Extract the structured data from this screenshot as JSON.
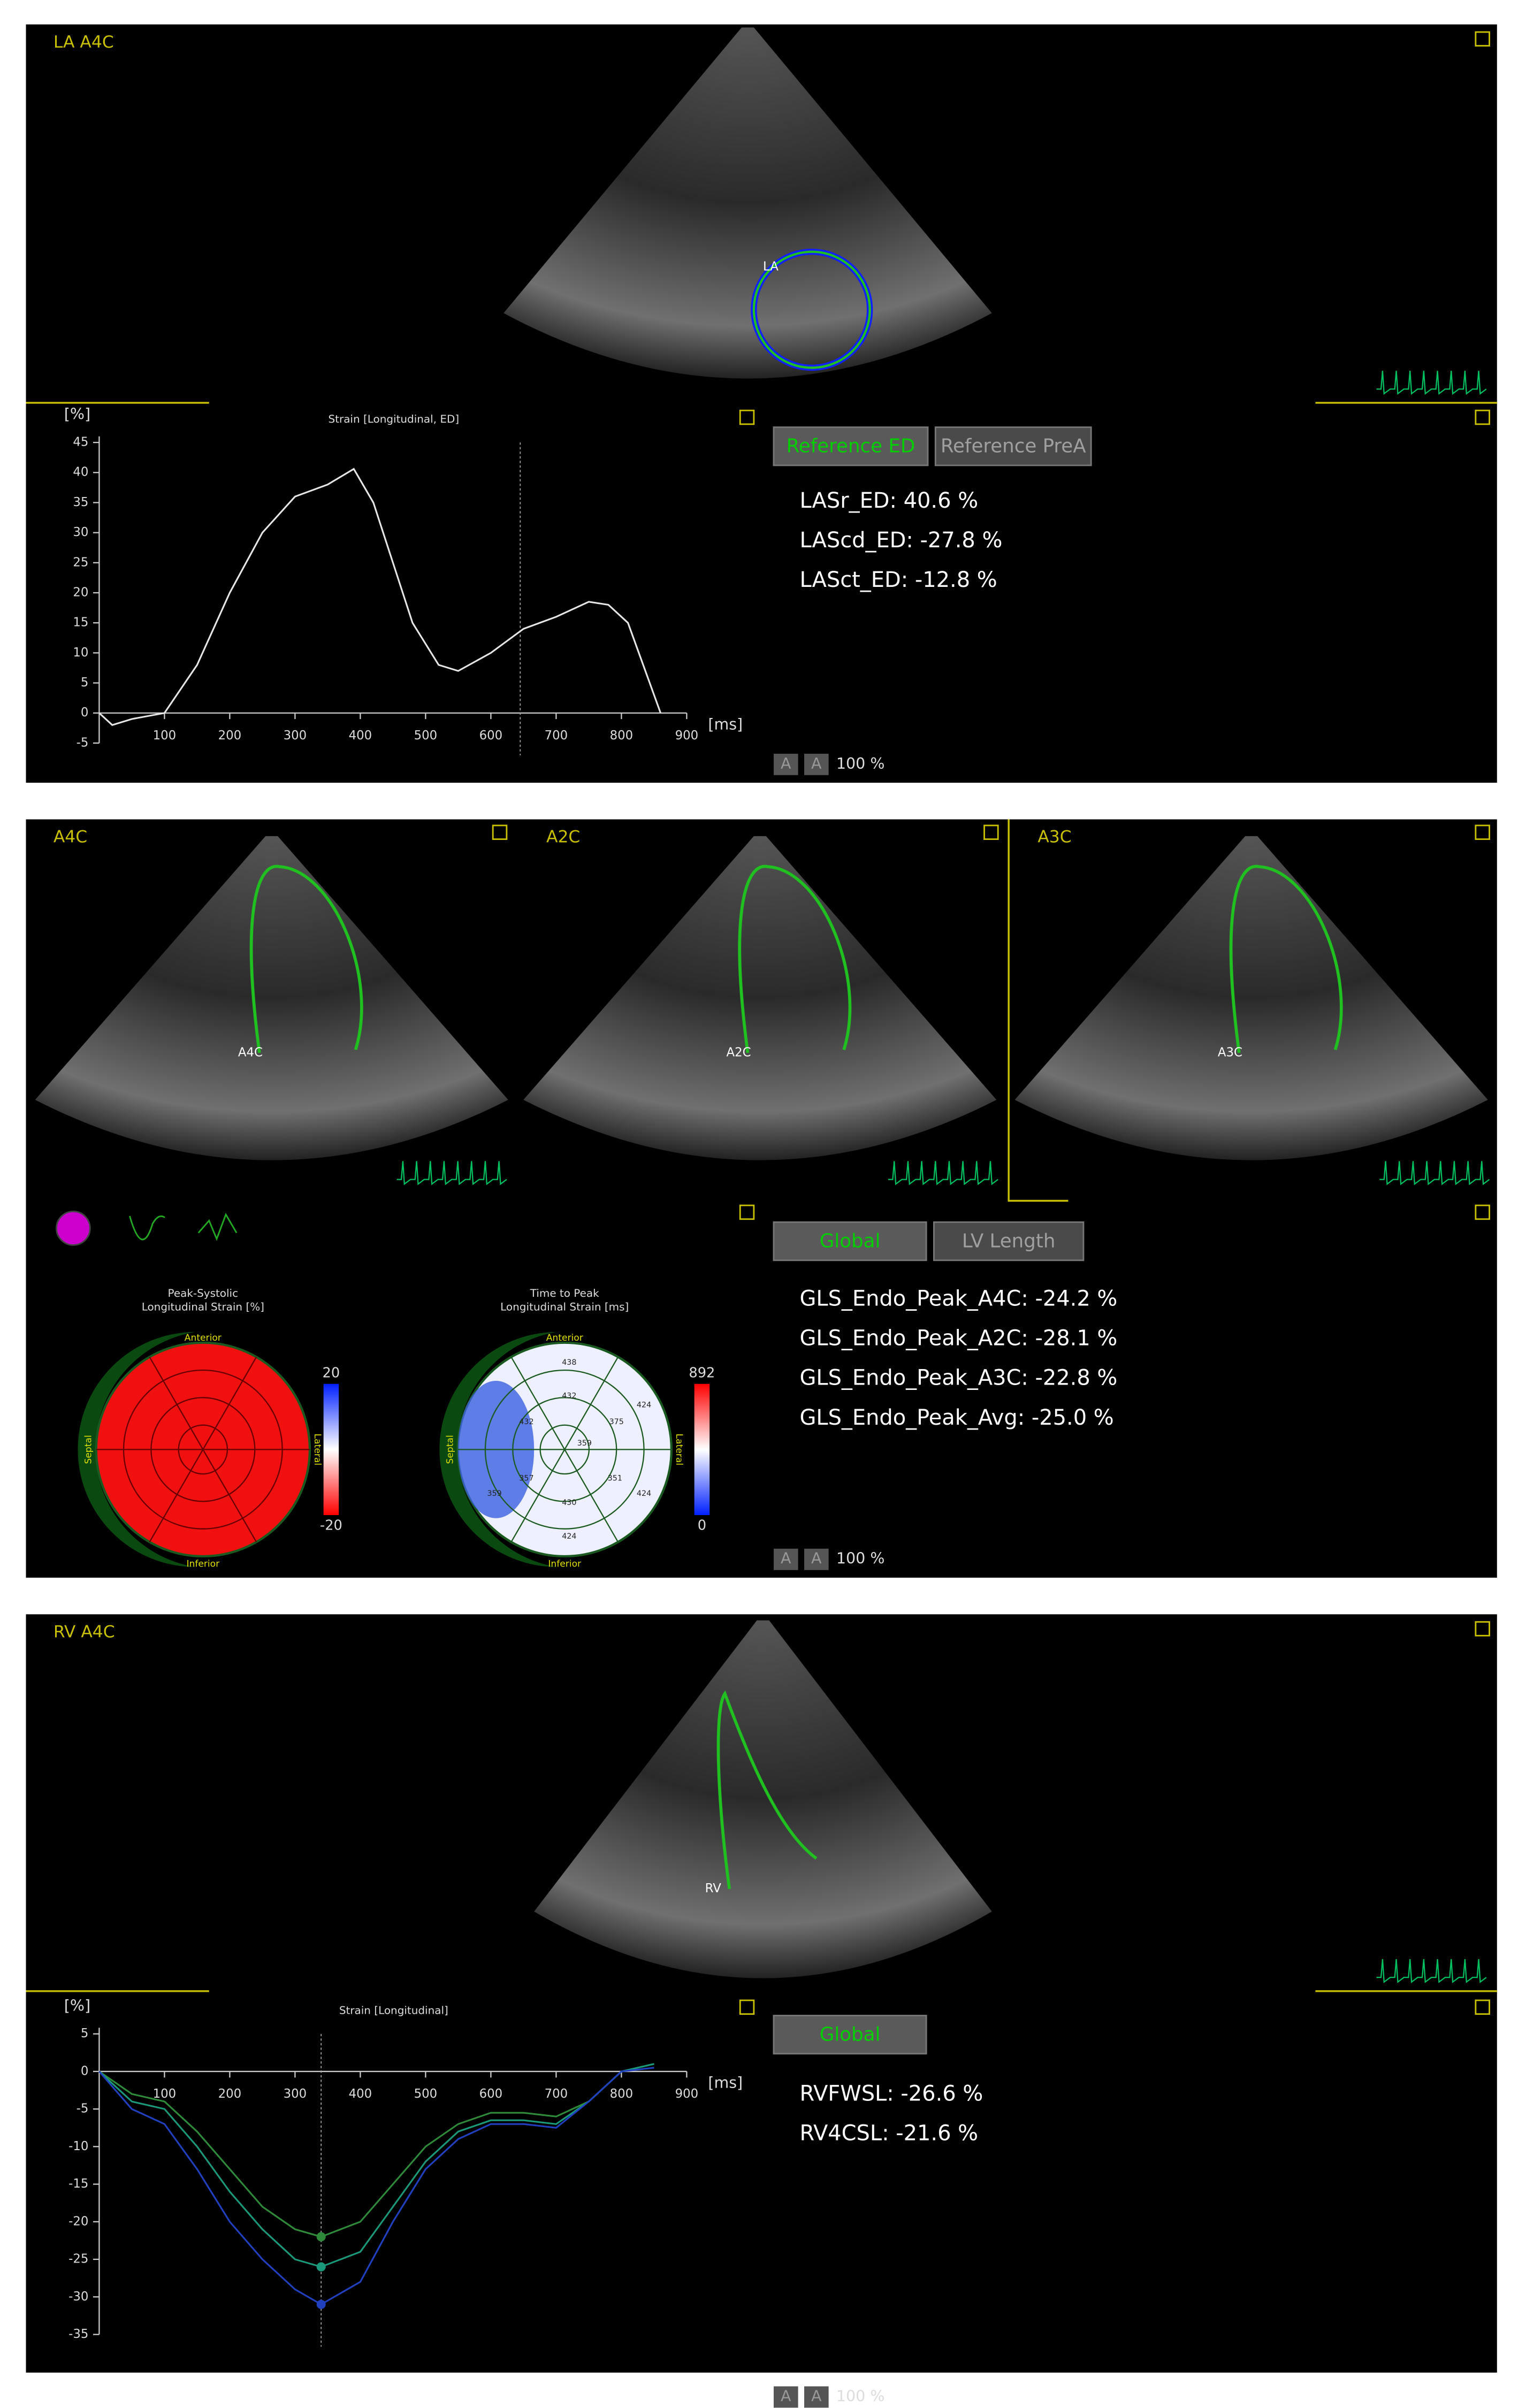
{
  "panels": [
    {
      "label": "LA A4C",
      "buttons": [
        "Reference ED",
        "Reference PreA"
      ],
      "measurements": [
        "LASr_ED: 40.6 %",
        "LAScd_ED: -27.8 %",
        "LASct_ED: -12.8 %"
      ],
      "zoom_buttons": [
        "A",
        "A"
      ],
      "zoom": "100 %",
      "view_label": "LA",
      "chart_data": {
        "type": "line",
        "title": "Strain [Longitudinal, ED]",
        "ylabel": "[%]",
        "xlabel": "[ms]",
        "xlim": [
          0,
          900
        ],
        "ylim": [
          -5,
          45
        ],
        "xticks": [
          100,
          200,
          300,
          400,
          500,
          600,
          700,
          800,
          900
        ],
        "yticks": [
          -5,
          0,
          5,
          10,
          15,
          20,
          25,
          30,
          35,
          40,
          45
        ],
        "cursor_x": 645,
        "x": [
          0,
          20,
          50,
          100,
          150,
          200,
          250,
          300,
          350,
          390,
          420,
          450,
          480,
          520,
          550,
          600,
          650,
          700,
          750,
          780,
          810,
          840,
          860
        ],
        "series": [
          {
            "color": "#e6e6e6",
            "values": [
              0,
              -2,
              -1,
              0,
              8,
              20,
              30,
              36,
              38,
              40.6,
              35,
              25,
              15,
              8,
              7,
              10,
              14,
              16,
              18.5,
              18,
              15,
              6,
              0
            ]
          }
        ]
      }
    },
    {
      "views": [
        "A4C",
        "A2C",
        "A3C"
      ],
      "view_markers": [
        "A4C",
        "A2C",
        "A3C"
      ],
      "buttons": [
        "Global",
        "LV Length"
      ],
      "measurements": [
        "GLS_Endo_Peak_A4C: -24.2 %",
        "GLS_Endo_Peak_A2C: -28.1 %",
        "GLS_Endo_Peak_A3C: -22.8 %",
        "GLS_Endo_Peak_Avg: -25.0 %"
      ],
      "zoom_buttons": [
        "A",
        "A"
      ],
      "zoom": "100 %",
      "bullseyes": [
        {
          "title": [
            "Peak-Systolic",
            "Longitudinal Strain [%]"
          ],
          "top": "Anterior",
          "bottom": "Inferior",
          "left": "Septal",
          "right": "Lateral",
          "scale_max": "20",
          "scale_min": "-20",
          "segments": []
        },
        {
          "title": [
            "Time to Peak",
            "Longitudinal Strain [ms]"
          ],
          "top": "Anterior",
          "bottom": "Inferior",
          "left": "Septal",
          "right": "Lateral",
          "scale_max": "892",
          "scale_min": "0",
          "segments": [
            "438",
            "432",
            "424",
            "375",
            "432",
            "359",
            "357",
            "424",
            "430",
            "424",
            "359",
            "351"
          ]
        }
      ]
    },
    {
      "label": "RV A4C",
      "buttons": [
        "Global"
      ],
      "measurements": [
        "RVFWSL: -26.6 %",
        "RV4CSL: -21.6 %"
      ],
      "zoom_buttons": [
        "A",
        "A"
      ],
      "zoom": "100 %",
      "view_label": "RV",
      "chart_data": {
        "type": "line",
        "title": "Strain [Longitudinal]",
        "ylabel": "[%]",
        "xlabel": "[ms]",
        "xlim": [
          0,
          900
        ],
        "ylim": [
          -35,
          5
        ],
        "xticks": [
          100,
          200,
          300,
          400,
          500,
          600,
          700,
          800,
          900
        ],
        "yticks": [
          -35,
          -30,
          -25,
          -20,
          -15,
          -10,
          -5,
          0,
          5
        ],
        "cursor_x": 340,
        "x": [
          0,
          50,
          100,
          150,
          200,
          250,
          300,
          340,
          400,
          450,
          500,
          550,
          600,
          650,
          700,
          750,
          800,
          850
        ],
        "series": [
          {
            "color": "#2e8b3a",
            "values": [
              0,
              -3,
              -4,
              -8,
              -13,
              -18,
              -21,
              -22,
              -20,
              -15,
              -10,
              -7,
              -5.5,
              -5.5,
              -6,
              -4,
              0,
              1
            ]
          },
          {
            "color": "#1a9a7a",
            "values": [
              0,
              -4,
              -5,
              -10,
              -16,
              -21,
              -25,
              -26,
              -24,
              -18,
              -12,
              -8,
              -6.5,
              -6.5,
              -7,
              -4,
              0,
              1
            ]
          },
          {
            "color": "#2040c0",
            "values": [
              0,
              -5,
              -7,
              -13,
              -20,
              -25,
              -29,
              -31,
              -28,
              -20,
              -13,
              -9,
              -7,
              -7,
              -7.5,
              -4,
              0,
              0.5
            ]
          }
        ]
      }
    }
  ]
}
